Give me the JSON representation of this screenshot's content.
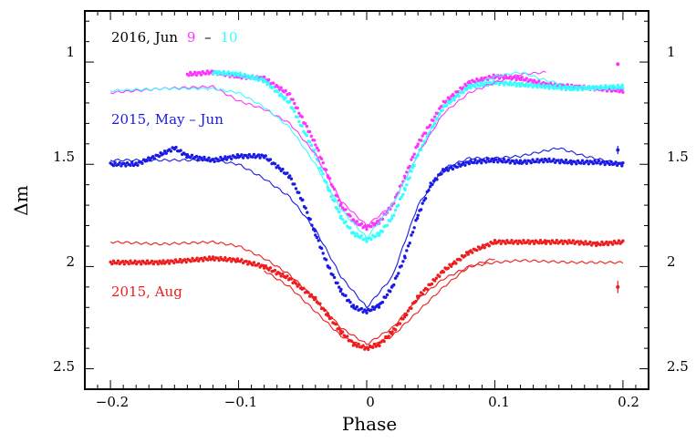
{
  "chart_data": {
    "type": "scatter",
    "title": "",
    "xlabel": "Phase",
    "ylabel": "Δm",
    "xlim": [
      -0.22,
      0.22
    ],
    "ylim": [
      2.6,
      0.75
    ],
    "xticks": [
      -0.2,
      -0.1,
      0,
      0.1,
      0.2
    ],
    "xtick_labels": [
      "−0.2",
      "−0.1",
      "0",
      "0.1",
      "0.2"
    ],
    "yticks": [
      1,
      1.5,
      2,
      2.5
    ],
    "ytick_labels": [
      "1",
      "1.5",
      "2",
      "2.5"
    ],
    "grid": false,
    "labels": {
      "june_2016_prefix": "2016, Jun",
      "june_2016_day9": "9",
      "june_2016_dash": "–",
      "june_2016_day10": "10",
      "may_jun_2015": "2015, May – Jun",
      "aug_2015": "2015, Aug"
    },
    "series": [
      {
        "name": "2016 Jun 9",
        "color": "#ff33ff",
        "style": "points",
        "x": [
          -0.14,
          -0.12,
          -0.1,
          -0.08,
          -0.06,
          -0.04,
          -0.03,
          -0.02,
          -0.01,
          0,
          0.01,
          0.02,
          0.03,
          0.04,
          0.06,
          0.08,
          0.1,
          0.12,
          0.14,
          0.16,
          0.2
        ],
        "y": [
          1.06,
          1.05,
          1.07,
          1.08,
          1.16,
          1.4,
          1.56,
          1.7,
          1.78,
          1.81,
          1.78,
          1.7,
          1.56,
          1.4,
          1.2,
          1.1,
          1.07,
          1.08,
          1.11,
          1.12,
          1.14
        ]
      },
      {
        "name": "2016 Jun 10",
        "color": "#33ffff",
        "style": "points",
        "x": [
          -0.12,
          -0.1,
          -0.08,
          -0.06,
          -0.04,
          -0.03,
          -0.02,
          -0.01,
          0,
          0.01,
          0.02,
          0.03,
          0.04,
          0.06,
          0.08,
          0.1,
          0.12,
          0.14,
          0.16,
          0.2
        ],
        "y": [
          1.05,
          1.06,
          1.09,
          1.2,
          1.45,
          1.62,
          1.76,
          1.84,
          1.87,
          1.84,
          1.76,
          1.62,
          1.45,
          1.22,
          1.12,
          1.1,
          1.11,
          1.12,
          1.13,
          1.12
        ]
      },
      {
        "name": "2016 Jun 9 thin",
        "color": "#ff33ff",
        "style": "line",
        "x": [
          -0.2,
          -0.16,
          -0.12,
          -0.1,
          -0.08,
          -0.06,
          -0.04,
          -0.02,
          0,
          0.02,
          0.04,
          0.06,
          0.08,
          0.1,
          0.12,
          0.14
        ],
        "y": [
          1.15,
          1.13,
          1.12,
          1.19,
          1.23,
          1.3,
          1.45,
          1.68,
          1.8,
          1.7,
          1.45,
          1.25,
          1.15,
          1.1,
          1.06,
          1.05
        ]
      },
      {
        "name": "2016 Jun 10 thin",
        "color": "#33ffff",
        "style": "line",
        "x": [
          -0.2,
          -0.16,
          -0.12,
          -0.1,
          -0.08,
          -0.06,
          -0.04,
          -0.02,
          0,
          0.02,
          0.04,
          0.06,
          0.08,
          0.1,
          0.12,
          0.14,
          0.16,
          0.2
        ],
        "y": [
          1.14,
          1.13,
          1.13,
          1.15,
          1.22,
          1.32,
          1.5,
          1.72,
          1.86,
          1.7,
          1.45,
          1.22,
          1.12,
          1.07,
          1.05,
          1.09,
          1.12,
          1.13
        ]
      },
      {
        "name": "2015 May – Jun",
        "color": "#1a1ae6",
        "style": "points",
        "x": [
          -0.2,
          -0.18,
          -0.16,
          -0.15,
          -0.14,
          -0.12,
          -0.1,
          -0.08,
          -0.06,
          -0.05,
          -0.04,
          -0.03,
          -0.02,
          -0.01,
          0,
          0.01,
          0.02,
          0.03,
          0.04,
          0.05,
          0.06,
          0.08,
          0.1,
          0.12,
          0.14,
          0.16,
          0.18,
          0.2
        ],
        "y": [
          1.5,
          1.5,
          1.45,
          1.42,
          1.46,
          1.48,
          1.46,
          1.46,
          1.56,
          1.68,
          1.84,
          2.0,
          2.12,
          2.2,
          2.22,
          2.19,
          2.1,
          1.95,
          1.75,
          1.6,
          1.53,
          1.49,
          1.48,
          1.49,
          1.48,
          1.49,
          1.49,
          1.5
        ]
      },
      {
        "name": "2015 May – Jun thin",
        "color": "#1a1ae6",
        "style": "line",
        "x": [
          -0.2,
          -0.16,
          -0.12,
          -0.1,
          -0.08,
          -0.06,
          -0.04,
          -0.02,
          0,
          0.02,
          0.04,
          0.06,
          0.08,
          0.1,
          0.12,
          0.15,
          0.17,
          0.2
        ],
        "y": [
          1.48,
          1.48,
          1.48,
          1.5,
          1.57,
          1.66,
          1.82,
          2.05,
          2.2,
          2.05,
          1.7,
          1.52,
          1.47,
          1.47,
          1.46,
          1.42,
          1.46,
          1.5
        ]
      },
      {
        "name": "2015 Aug",
        "color": "#ee1c1c",
        "style": "points",
        "x": [
          -0.2,
          -0.16,
          -0.12,
          -0.1,
          -0.08,
          -0.06,
          -0.04,
          -0.03,
          -0.02,
          -0.01,
          0,
          0.01,
          0.02,
          0.03,
          0.04,
          0.06,
          0.08,
          0.1,
          0.12,
          0.14,
          0.16,
          0.18,
          0.2
        ],
        "y": [
          1.98,
          1.98,
          1.96,
          1.97,
          2.0,
          2.06,
          2.16,
          2.24,
          2.32,
          2.38,
          2.4,
          2.38,
          2.32,
          2.24,
          2.15,
          2.02,
          1.93,
          1.88,
          1.88,
          1.88,
          1.88,
          1.89,
          1.88
        ]
      },
      {
        "name": "2015 Aug thin upper",
        "color": "#ee1c1c",
        "style": "line",
        "x": [
          -0.2,
          -0.16,
          -0.12,
          -0.1,
          -0.08,
          -0.06,
          -0.04,
          -0.02,
          0,
          0.02,
          0.04,
          0.06,
          0.08,
          0.1,
          0.12,
          0.16,
          0.2
        ],
        "y": [
          1.88,
          1.89,
          1.88,
          1.9,
          1.96,
          2.04,
          2.16,
          2.3,
          2.38,
          2.3,
          2.16,
          2.06,
          2.0,
          1.98,
          1.97,
          1.98,
          1.98
        ]
      },
      {
        "name": "2015 Aug thin lower",
        "color": "#ee1c1c",
        "style": "line",
        "x": [
          -0.08,
          -0.06,
          -0.04,
          -0.02,
          0,
          0.02,
          0.04,
          0.06,
          0.08,
          0.1
        ],
        "y": [
          2.02,
          2.1,
          2.22,
          2.34,
          2.4,
          2.34,
          2.22,
          2.1,
          2.0,
          1.96
        ]
      }
    ],
    "error_bars": [
      {
        "name": "cyan-magenta-marker",
        "x": 0.196,
        "y": 1.01,
        "err": 0.005,
        "color": "#ff33ff"
      },
      {
        "name": "blue-error-bar",
        "x": 0.196,
        "y": 1.43,
        "err": 0.02,
        "color": "#1a1ae6"
      },
      {
        "name": "red-error-bar",
        "x": 0.196,
        "y": 2.1,
        "err": 0.03,
        "color": "#ee1c1c"
      }
    ]
  }
}
